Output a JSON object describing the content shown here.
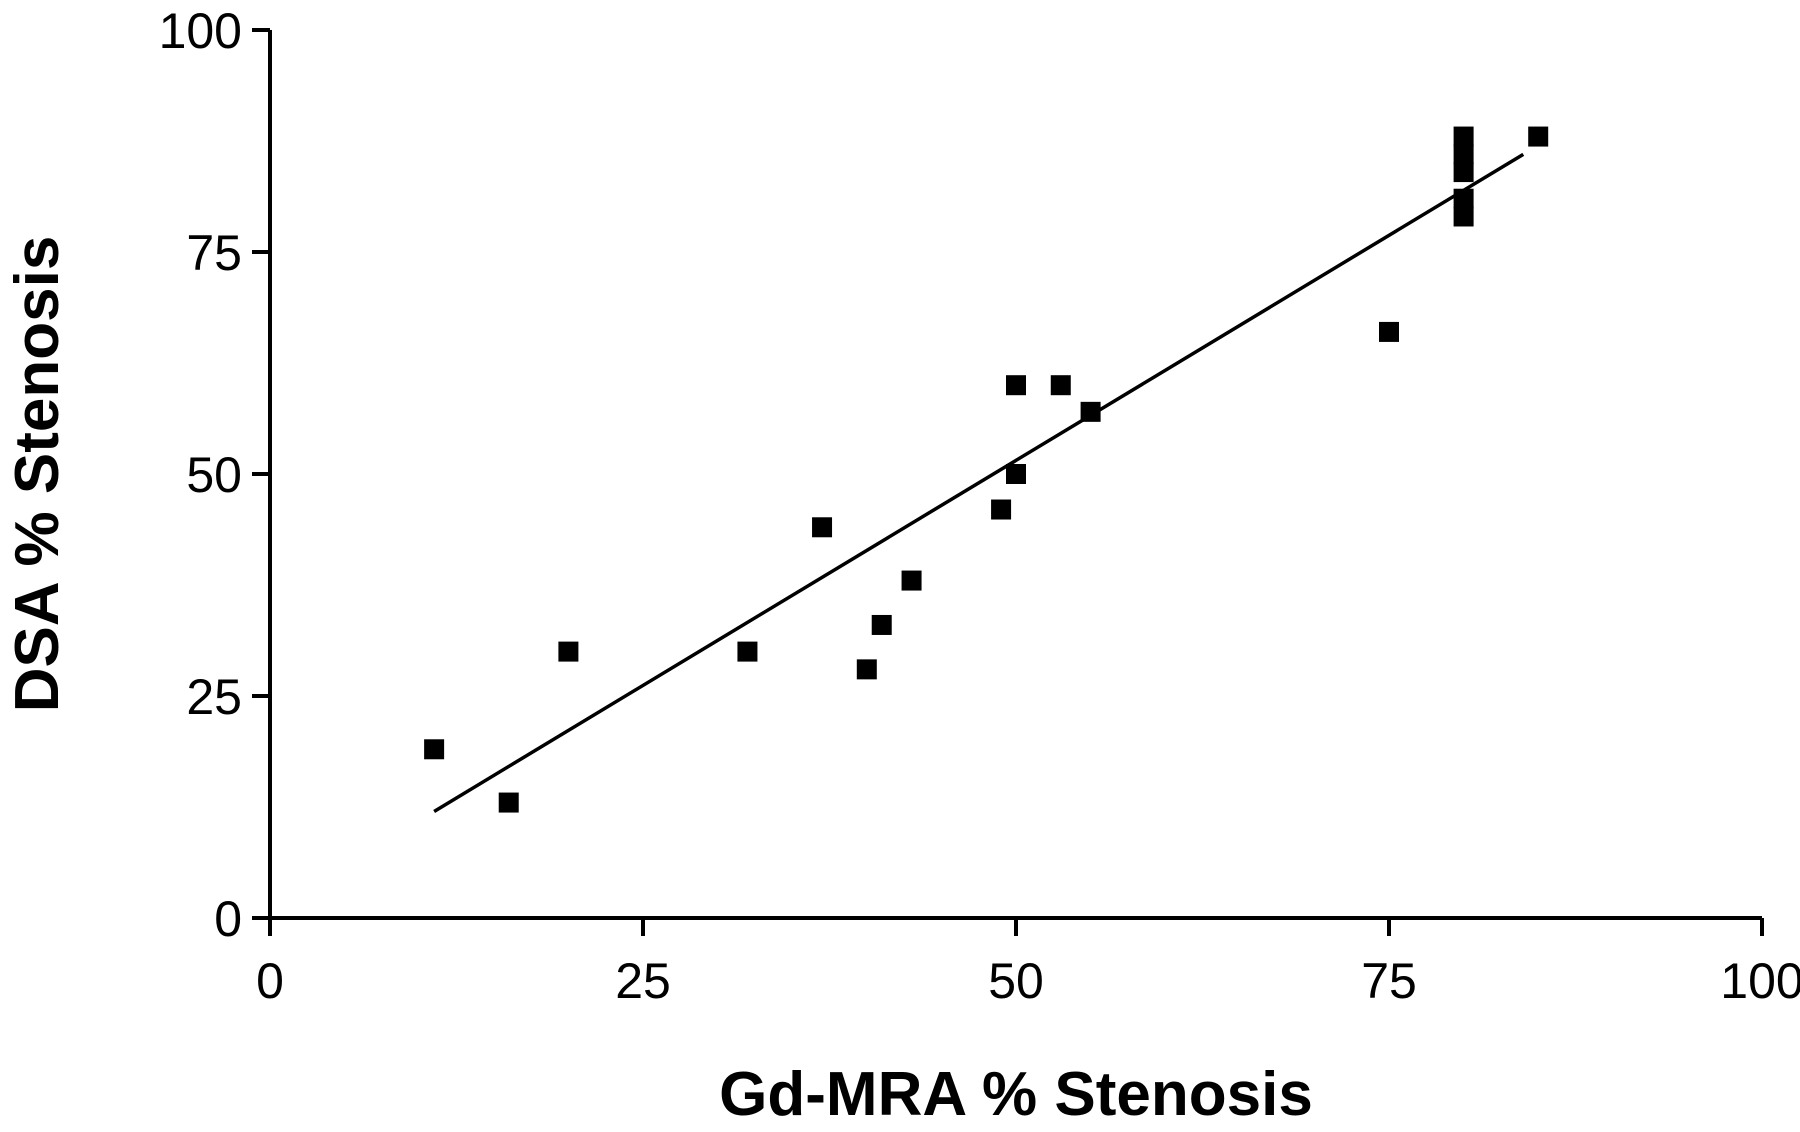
{
  "chart_data": {
    "type": "scatter",
    "title": "",
    "xlabel": "Gd-MRA % Stenosis",
    "ylabel": "DSA % Stenosis",
    "xlim": [
      0,
      100
    ],
    "ylim": [
      0,
      100
    ],
    "xticks": [
      0,
      25,
      50,
      75,
      100
    ],
    "yticks": [
      0,
      25,
      50,
      75,
      100
    ],
    "grid": false,
    "marker": "square",
    "points": [
      {
        "x": 11,
        "y": 19
      },
      {
        "x": 16,
        "y": 13
      },
      {
        "x": 20,
        "y": 30
      },
      {
        "x": 32,
        "y": 30
      },
      {
        "x": 37,
        "y": 44
      },
      {
        "x": 40,
        "y": 28
      },
      {
        "x": 41,
        "y": 33
      },
      {
        "x": 43,
        "y": 38
      },
      {
        "x": 49,
        "y": 46
      },
      {
        "x": 50,
        "y": 60
      },
      {
        "x": 50,
        "y": 50
      },
      {
        "x": 53,
        "y": 60
      },
      {
        "x": 55,
        "y": 57
      },
      {
        "x": 75,
        "y": 66
      },
      {
        "x": 80,
        "y": 88
      },
      {
        "x": 80,
        "y": 86
      },
      {
        "x": 80,
        "y": 84
      },
      {
        "x": 80,
        "y": 81
      },
      {
        "x": 80,
        "y": 79
      },
      {
        "x": 85,
        "y": 88
      }
    ],
    "regression_line": {
      "x1": 11,
      "y1": 12,
      "x2": 84,
      "y2": 86
    }
  }
}
